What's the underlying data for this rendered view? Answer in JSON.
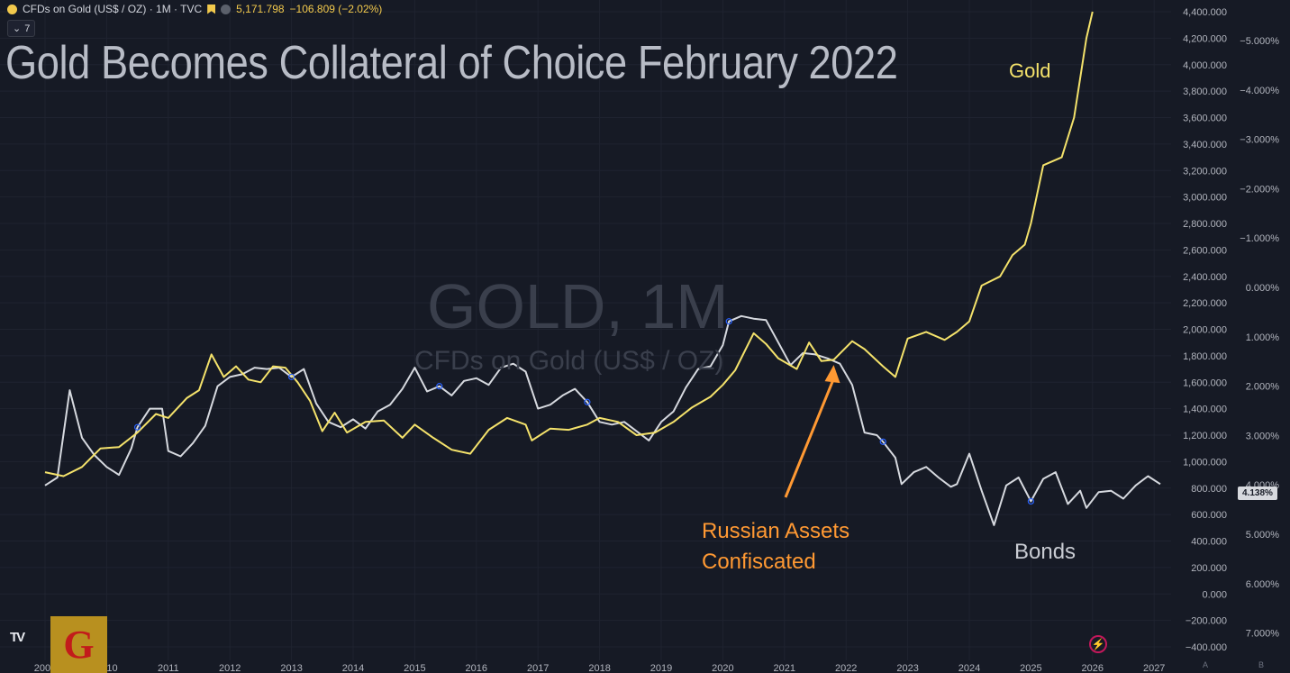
{
  "header": {
    "symbol_text": "CFDs on Gold (US$ / OZ) · 1M · TVC",
    "price": "5,171.798",
    "change": "−106.809 (−2.02%)",
    "indicator_badge": "7"
  },
  "title": "Gold Becomes Collateral of Choice February 2022",
  "watermark": {
    "symbol": "GOLD, 1M",
    "description": "CFDs on Gold (US$ / OZ)"
  },
  "annotations": {
    "gold_label": "Gold",
    "bonds_label": "Bonds",
    "russia_line1": "Russian Assets",
    "russia_line2": "Confiscated"
  },
  "logo": {
    "letter": "G"
  },
  "axis_buttons": {
    "a": "A",
    "b": "B"
  },
  "colors": {
    "background": "#161a25",
    "gold": "#f4e26b",
    "bonds": "#d6d9df",
    "arrow": "#ff9933"
  },
  "chart_data": {
    "type": "line",
    "x_ticks": [
      "2009",
      "2010",
      "2011",
      "2012",
      "2013",
      "2014",
      "2015",
      "2016",
      "2017",
      "2018",
      "2019",
      "2020",
      "2021",
      "2022",
      "2023",
      "2024",
      "2025",
      "2026",
      "2027"
    ],
    "y_left_ticks": [
      "4,400.000",
      "4,200.000",
      "4,000.000",
      "3,800.000",
      "3,600.000",
      "3,400.000",
      "3,200.000",
      "3,000.000",
      "2,800.000",
      "2,600.000",
      "2,400.000",
      "2,200.000",
      "2,000.000",
      "1,800.000",
      "1,600.000",
      "1,400.000",
      "1,200.000",
      "1,000.000",
      "800.000",
      "600.000",
      "400.000",
      "200.000",
      "0.000",
      "−200.000",
      "−400.000"
    ],
    "y_right_ticks": [
      "−5.000%",
      "−4.000%",
      "−3.000%",
      "−2.000%",
      "−1.000%",
      "0.000%",
      "1.000%",
      "2.000%",
      "3.000%",
      "4.000%",
      "5.000%",
      "6.000%",
      "7.000%"
    ],
    "last_value_tag": "4.138%",
    "ylim": [
      -400,
      4400
    ],
    "series": [
      {
        "name": "Gold",
        "color": "#f4e26b",
        "points": [
          [
            2009.0,
            920
          ],
          [
            2009.3,
            890
          ],
          [
            2009.6,
            960
          ],
          [
            2009.9,
            1100
          ],
          [
            2010.2,
            1110
          ],
          [
            2010.5,
            1220
          ],
          [
            2010.8,
            1360
          ],
          [
            2011.0,
            1330
          ],
          [
            2011.3,
            1480
          ],
          [
            2011.5,
            1540
          ],
          [
            2011.7,
            1810
          ],
          [
            2011.9,
            1640
          ],
          [
            2012.1,
            1720
          ],
          [
            2012.3,
            1620
          ],
          [
            2012.5,
            1600
          ],
          [
            2012.7,
            1720
          ],
          [
            2012.9,
            1710
          ],
          [
            2013.1,
            1600
          ],
          [
            2013.3,
            1460
          ],
          [
            2013.5,
            1230
          ],
          [
            2013.7,
            1370
          ],
          [
            2013.9,
            1220
          ],
          [
            2014.2,
            1300
          ],
          [
            2014.5,
            1310
          ],
          [
            2014.8,
            1180
          ],
          [
            2015.0,
            1280
          ],
          [
            2015.3,
            1180
          ],
          [
            2015.6,
            1090
          ],
          [
            2015.9,
            1060
          ],
          [
            2016.2,
            1240
          ],
          [
            2016.5,
            1330
          ],
          [
            2016.8,
            1280
          ],
          [
            2016.9,
            1160
          ],
          [
            2017.2,
            1250
          ],
          [
            2017.5,
            1240
          ],
          [
            2017.8,
            1280
          ],
          [
            2018.0,
            1330
          ],
          [
            2018.3,
            1300
          ],
          [
            2018.6,
            1200
          ],
          [
            2018.9,
            1220
          ],
          [
            2019.2,
            1300
          ],
          [
            2019.5,
            1410
          ],
          [
            2019.8,
            1490
          ],
          [
            2020.0,
            1580
          ],
          [
            2020.2,
            1690
          ],
          [
            2020.5,
            1970
          ],
          [
            2020.7,
            1890
          ],
          [
            2020.9,
            1780
          ],
          [
            2021.2,
            1700
          ],
          [
            2021.4,
            1900
          ],
          [
            2021.6,
            1760
          ],
          [
            2021.8,
            1770
          ],
          [
            2022.1,
            1910
          ],
          [
            2022.3,
            1850
          ],
          [
            2022.6,
            1720
          ],
          [
            2022.8,
            1640
          ],
          [
            2023.0,
            1930
          ],
          [
            2023.3,
            1980
          ],
          [
            2023.6,
            1920
          ],
          [
            2023.8,
            1980
          ],
          [
            2024.0,
            2060
          ],
          [
            2024.2,
            2330
          ],
          [
            2024.5,
            2400
          ],
          [
            2024.7,
            2560
          ],
          [
            2024.9,
            2640
          ],
          [
            2025.0,
            2800
          ],
          [
            2025.2,
            3240
          ],
          [
            2025.5,
            3300
          ],
          [
            2025.7,
            3600
          ],
          [
            2025.9,
            4200
          ],
          [
            2026.0,
            4400
          ]
        ]
      },
      {
        "name": "Bonds",
        "color": "#d6d9df",
        "points": [
          [
            2009.0,
            820
          ],
          [
            2009.2,
            880
          ],
          [
            2009.4,
            1540
          ],
          [
            2009.6,
            1180
          ],
          [
            2009.8,
            1050
          ],
          [
            2010.0,
            960
          ],
          [
            2010.2,
            900
          ],
          [
            2010.4,
            1100
          ],
          [
            2010.5,
            1260
          ],
          [
            2010.7,
            1400
          ],
          [
            2010.9,
            1400
          ],
          [
            2011.0,
            1080
          ],
          [
            2011.2,
            1040
          ],
          [
            2011.4,
            1140
          ],
          [
            2011.6,
            1270
          ],
          [
            2011.8,
            1570
          ],
          [
            2012.0,
            1640
          ],
          [
            2012.2,
            1660
          ],
          [
            2012.4,
            1710
          ],
          [
            2012.6,
            1700
          ],
          [
            2012.8,
            1710
          ],
          [
            2013.0,
            1640
          ],
          [
            2013.2,
            1700
          ],
          [
            2013.4,
            1440
          ],
          [
            2013.6,
            1300
          ],
          [
            2013.8,
            1260
          ],
          [
            2014.0,
            1320
          ],
          [
            2014.2,
            1250
          ],
          [
            2014.4,
            1380
          ],
          [
            2014.6,
            1430
          ],
          [
            2014.8,
            1550
          ],
          [
            2015.0,
            1710
          ],
          [
            2015.2,
            1530
          ],
          [
            2015.4,
            1570
          ],
          [
            2015.6,
            1500
          ],
          [
            2015.8,
            1610
          ],
          [
            2016.0,
            1630
          ],
          [
            2016.2,
            1580
          ],
          [
            2016.4,
            1710
          ],
          [
            2016.6,
            1740
          ],
          [
            2016.8,
            1680
          ],
          [
            2017.0,
            1400
          ],
          [
            2017.2,
            1430
          ],
          [
            2017.4,
            1500
          ],
          [
            2017.6,
            1550
          ],
          [
            2017.8,
            1450
          ],
          [
            2018.0,
            1300
          ],
          [
            2018.2,
            1280
          ],
          [
            2018.4,
            1300
          ],
          [
            2018.6,
            1230
          ],
          [
            2018.8,
            1160
          ],
          [
            2019.0,
            1300
          ],
          [
            2019.2,
            1380
          ],
          [
            2019.4,
            1560
          ],
          [
            2019.6,
            1700
          ],
          [
            2019.8,
            1720
          ],
          [
            2020.0,
            1880
          ],
          [
            2020.1,
            2060
          ],
          [
            2020.3,
            2100
          ],
          [
            2020.5,
            2080
          ],
          [
            2020.7,
            2070
          ],
          [
            2020.9,
            1900
          ],
          [
            2021.1,
            1730
          ],
          [
            2021.3,
            1820
          ],
          [
            2021.5,
            1810
          ],
          [
            2021.7,
            1780
          ],
          [
            2021.9,
            1740
          ],
          [
            2022.1,
            1580
          ],
          [
            2022.3,
            1220
          ],
          [
            2022.5,
            1200
          ],
          [
            2022.6,
            1150
          ],
          [
            2022.8,
            1030
          ],
          [
            2022.9,
            830
          ],
          [
            2023.1,
            920
          ],
          [
            2023.3,
            960
          ],
          [
            2023.5,
            880
          ],
          [
            2023.7,
            810
          ],
          [
            2023.8,
            830
          ],
          [
            2024.0,
            1060
          ],
          [
            2024.2,
            780
          ],
          [
            2024.4,
            520
          ],
          [
            2024.6,
            820
          ],
          [
            2024.8,
            880
          ],
          [
            2025.0,
            700
          ],
          [
            2025.2,
            870
          ],
          [
            2025.4,
            920
          ],
          [
            2025.6,
            680
          ],
          [
            2025.8,
            780
          ],
          [
            2025.9,
            650
          ],
          [
            2026.1,
            770
          ],
          [
            2026.3,
            780
          ],
          [
            2026.5,
            720
          ],
          [
            2026.7,
            820
          ],
          [
            2026.9,
            890
          ],
          [
            2027.1,
            830
          ]
        ]
      }
    ]
  }
}
